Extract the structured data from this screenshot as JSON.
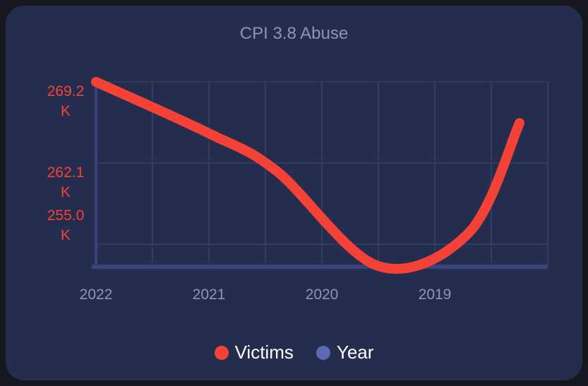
{
  "chart_data": {
    "type": "line",
    "title": "CPI 3.8 Abuse",
    "x": [
      "2022",
      "2021",
      "2020",
      "2019",
      ""
    ],
    "y_ticks": [
      {
        "value": 269200,
        "line1": "269.2",
        "line2": "K"
      },
      {
        "value": 262100,
        "line1": "262.1",
        "line2": "K"
      },
      {
        "value": 255000,
        "line1": "255.0",
        "line2": "K"
      }
    ],
    "ylim": [
      253100,
      269200
    ],
    "grid": true,
    "legend_position": "bottom",
    "series": [
      {
        "name": "Victims",
        "color": "#f44336",
        "points": [
          [
            0,
            269200
          ],
          [
            1.0,
            264700
          ],
          [
            1.6,
            261400
          ],
          [
            2.5,
            253100
          ],
          [
            3.3,
            256000
          ],
          [
            3.75,
            265600
          ]
        ]
      },
      {
        "name": "Year",
        "color": "#5c6bb0",
        "points": []
      }
    ]
  },
  "colors": {
    "tick_x": "#8b93c0",
    "tick_y": "#f44336",
    "grid": "#343e66",
    "axis": "#39457a"
  }
}
